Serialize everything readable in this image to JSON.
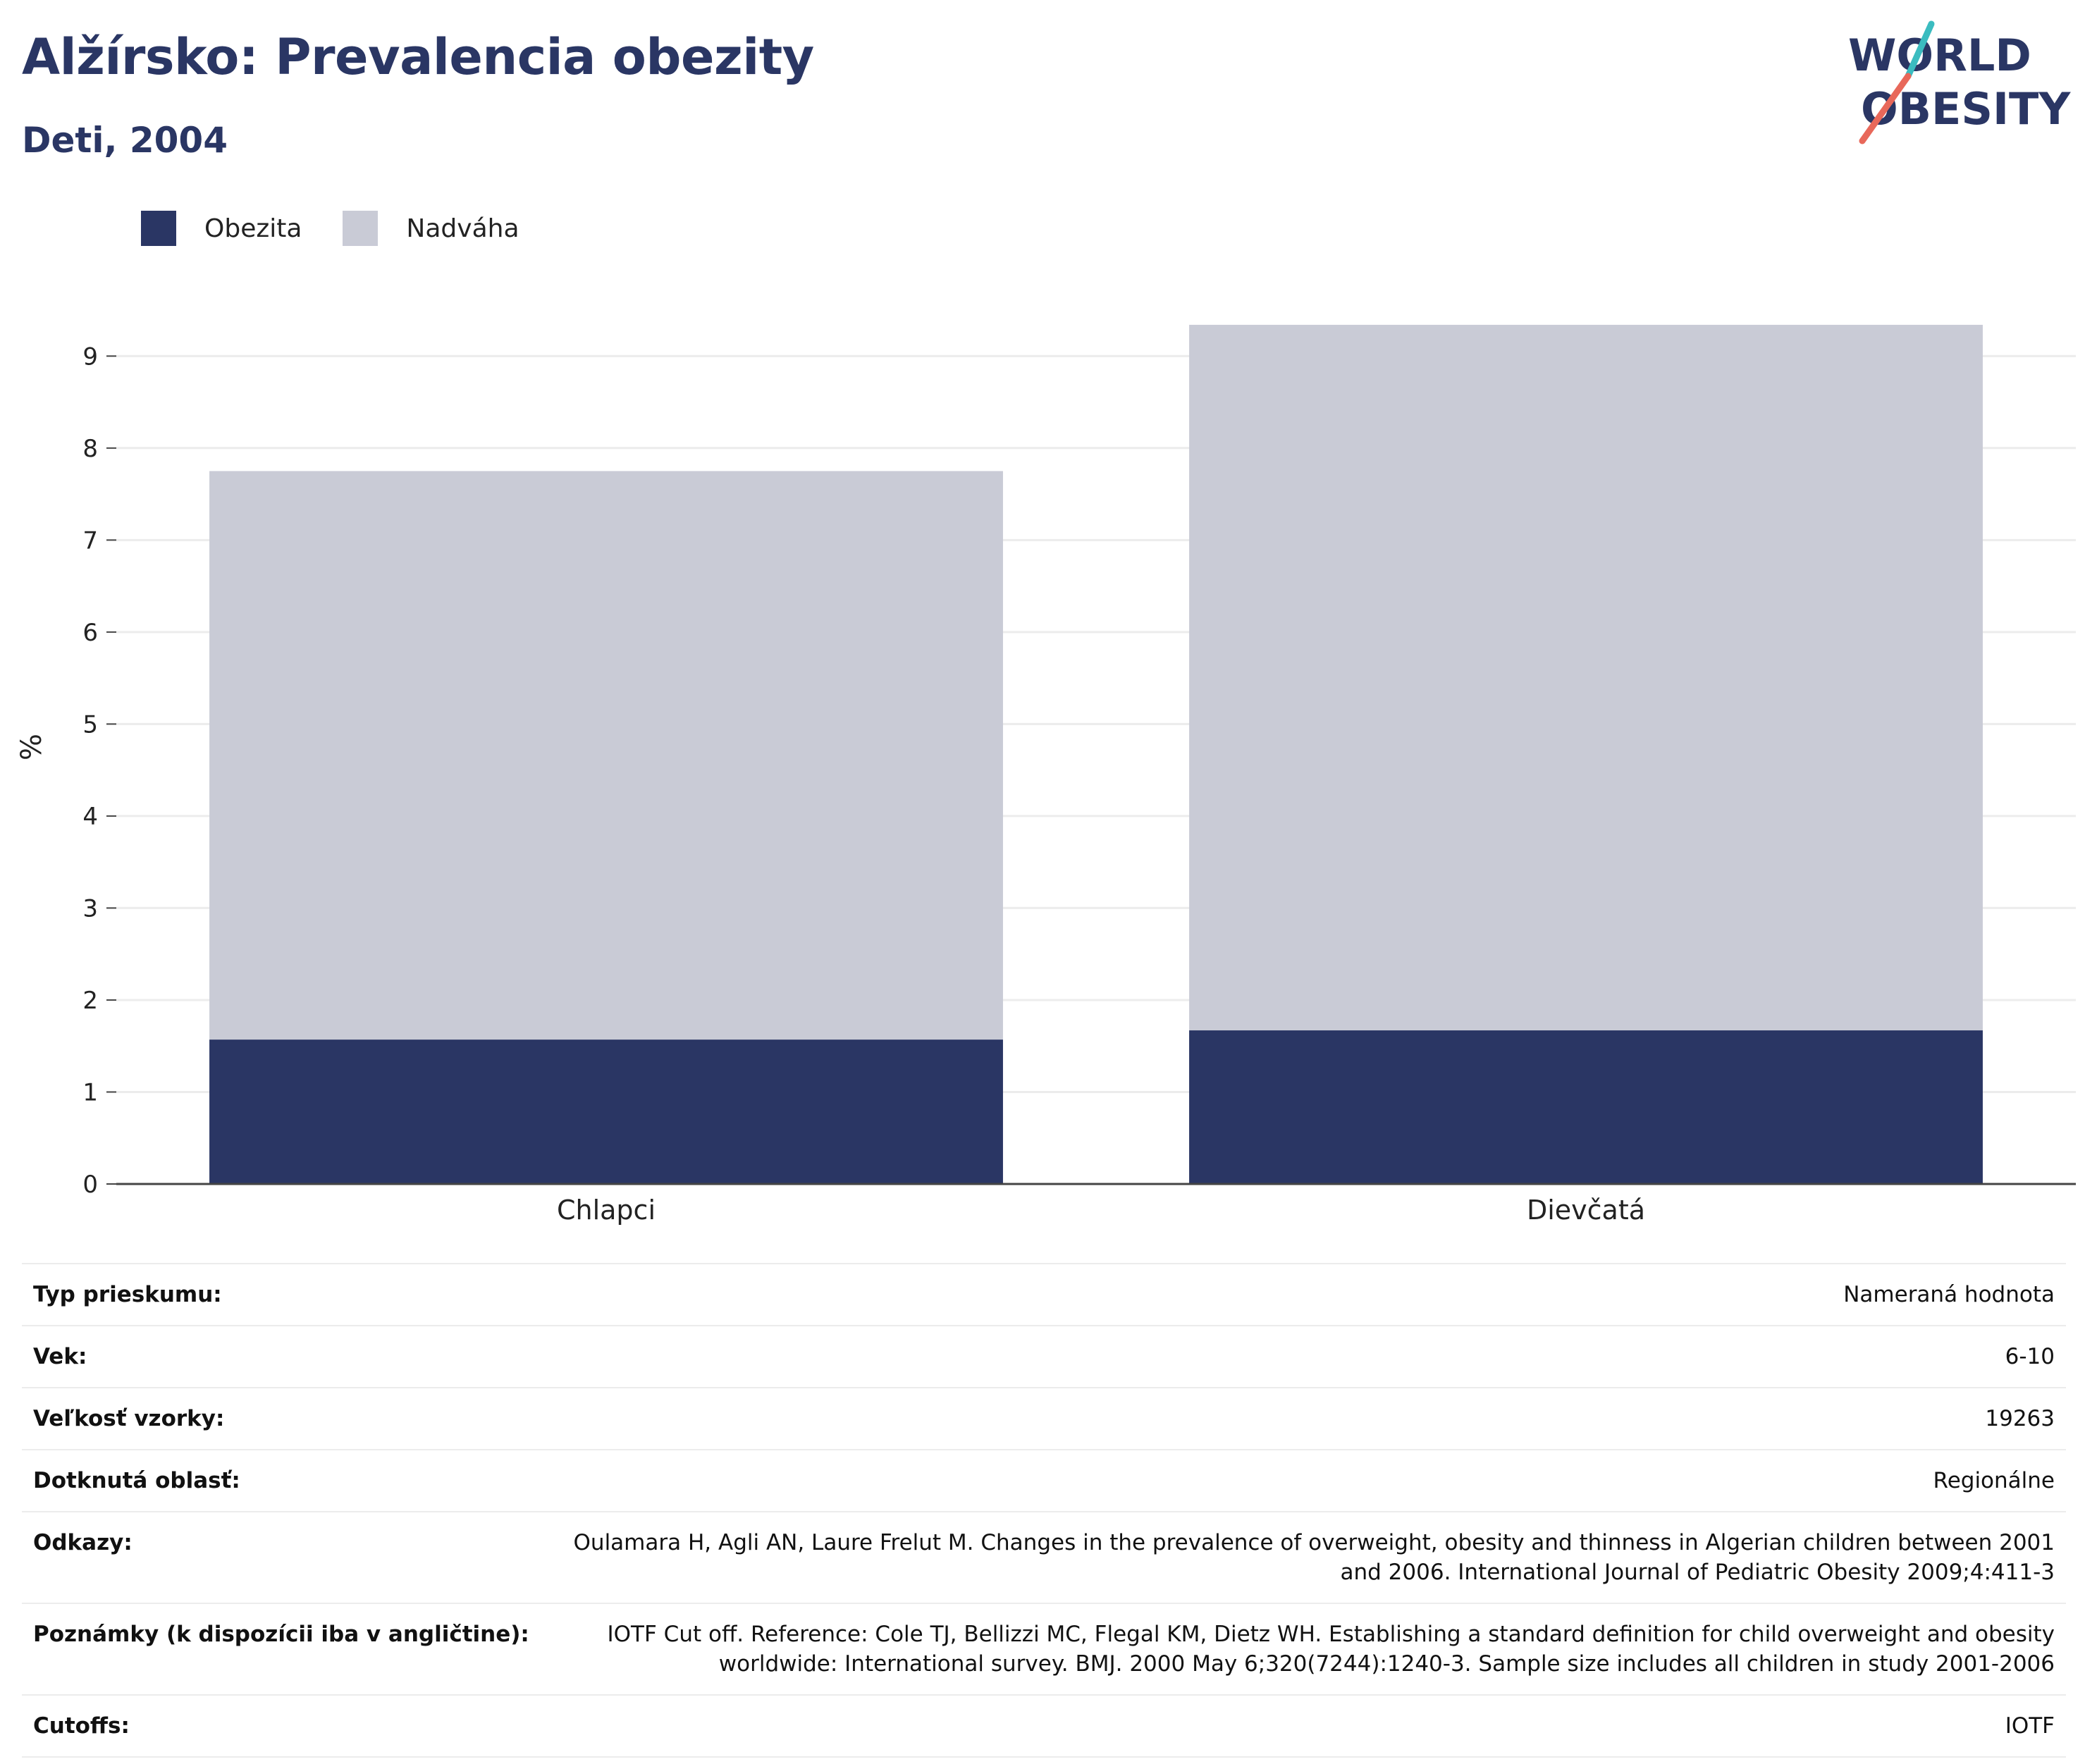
{
  "header": {
    "title": "Alžírsko: Prevalencia obezity",
    "subtitle": "Deti, 2004"
  },
  "logo": {
    "line1": "WORLD",
    "line2": "OBESITY",
    "colors": {
      "text": "#2a3664",
      "slash_top": "#3bbcc0",
      "slash_bottom": "#e8685a"
    }
  },
  "colors": {
    "obesity": "#2a3664",
    "overweight": "#c9cbd6",
    "grid": "#ececec",
    "axis": "#444444"
  },
  "chart_data": {
    "type": "bar",
    "stacked": true,
    "categories": [
      "Chlapci",
      "Dievčatá"
    ],
    "series": [
      {
        "name": "Obezita",
        "values": [
          1.57,
          1.67
        ]
      },
      {
        "name": "Nadváha",
        "values": [
          6.18,
          7.67
        ]
      }
    ],
    "ylabel": "%",
    "ylim": [
      0,
      9.5
    ],
    "yticks": [
      0,
      1,
      2,
      3,
      4,
      5,
      6,
      7,
      8,
      9
    ],
    "grid": true,
    "legend": "top-left"
  },
  "info": [
    {
      "label": "Typ prieskumu:",
      "value": "Nameraná hodnota"
    },
    {
      "label": "Vek:",
      "value": "6-10"
    },
    {
      "label": "Veľkosť vzorky:",
      "value": "19263"
    },
    {
      "label": "Dotknutá oblasť:",
      "value": "Regionálne"
    },
    {
      "label": "Odkazy:",
      "value": "Oulamara H, Agli AN, Laure Frelut M. Changes in the prevalence of overweight, obesity and thinness in Algerian children between 2001 and 2006. International Journal of Pediatric Obesity 2009;4:411-3"
    },
    {
      "label": "Poznámky (k dispozícii iba v angličtine):",
      "value": "IOTF Cut off. Reference: Cole TJ, Bellizzi MC, Flegal KM, Dietz WH. Establishing a standard definition for child overweight and obesity worldwide: International survey. BMJ. 2000 May 6;320(7244):1240-3. Sample size includes all children in study 2001-2006"
    },
    {
      "label": "Cutoffs:",
      "value": "IOTF"
    }
  ]
}
